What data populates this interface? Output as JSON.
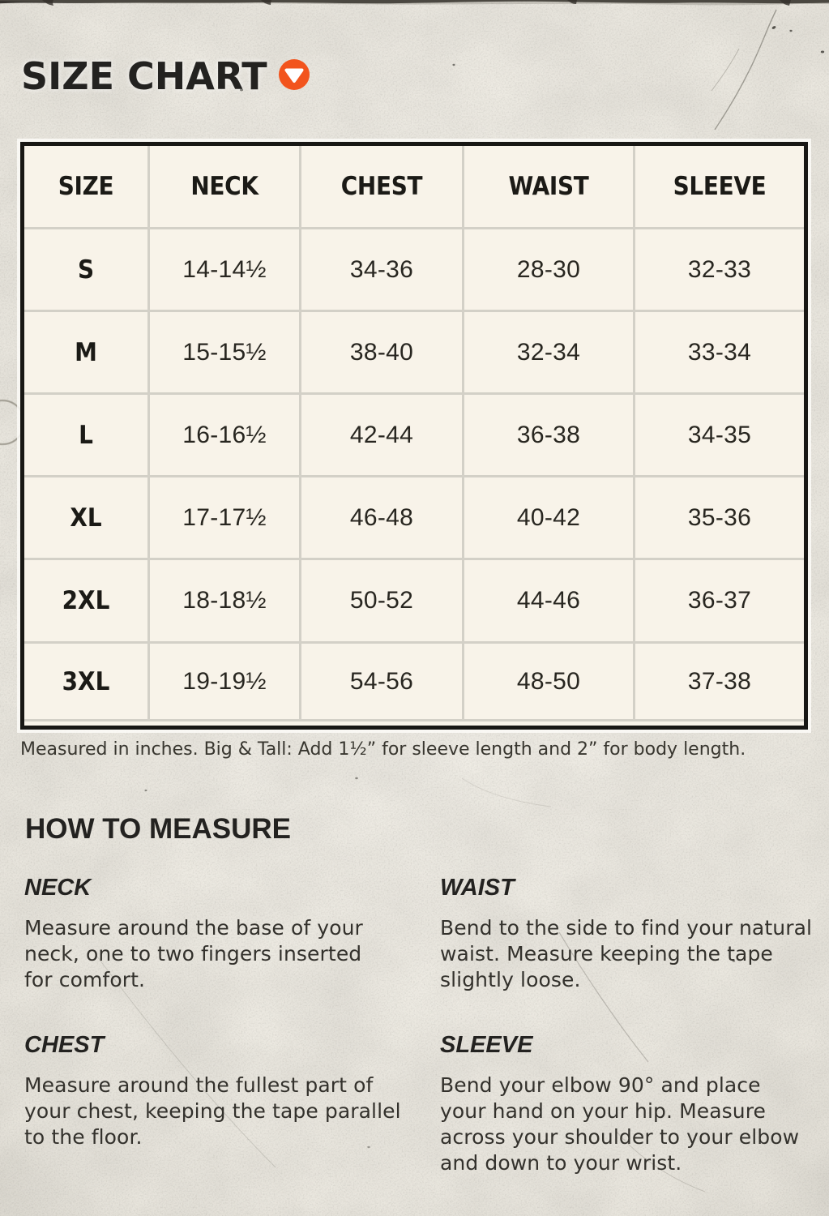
{
  "header": {
    "title": "SIZE CHART",
    "dropdown_icon": "chevron-down-circle",
    "accent_color": "#f2541d"
  },
  "chart_data": {
    "type": "table",
    "columns": [
      "SIZE",
      "NECK",
      "CHEST",
      "WAIST",
      "SLEEVE"
    ],
    "rows": [
      [
        "S",
        "14-14½",
        "34-36",
        "28-30",
        "32-33"
      ],
      [
        "M",
        "15-15½",
        "38-40",
        "32-34",
        "33-34"
      ],
      [
        "L",
        "16-16½",
        "42-44",
        "36-38",
        "34-35"
      ],
      [
        "XL",
        "17-17½",
        "46-48",
        "40-42",
        "35-36"
      ],
      [
        "2XL",
        "18-18½",
        "50-52",
        "44-46",
        "36-37"
      ],
      [
        "3XL",
        "19-19½",
        "54-56",
        "48-50",
        "37-38"
      ]
    ],
    "units": "inches"
  },
  "note": "Measured in inches. Big & Tall: Add 1½” for sleeve length and 2” for body length.",
  "how_to_measure": {
    "title": "HOW TO MEASURE",
    "items": [
      {
        "label": "NECK",
        "text": "Measure around the base of your\nneck, one to two fingers inserted\nfor comfort."
      },
      {
        "label": "WAIST",
        "text": "Bend to the side to find your natural\nwaist. Measure keeping the tape\nslightly loose."
      },
      {
        "label": "CHEST",
        "text": "Measure around the fullest part of\nyour chest, keeping the tape parallel\nto the floor."
      },
      {
        "label": "SLEEVE",
        "text": "Bend your elbow 90° and place\nyour hand on your hip. Measure\nacross your shoulder to your elbow\nand down to your wrist."
      }
    ]
  },
  "colors": {
    "background": "#eae7e0",
    "table_cell": "#f8f3e9",
    "table_frame": "#181714",
    "grid_line": "#d3d0c7",
    "text": "#232220",
    "accent": "#f2541d"
  }
}
